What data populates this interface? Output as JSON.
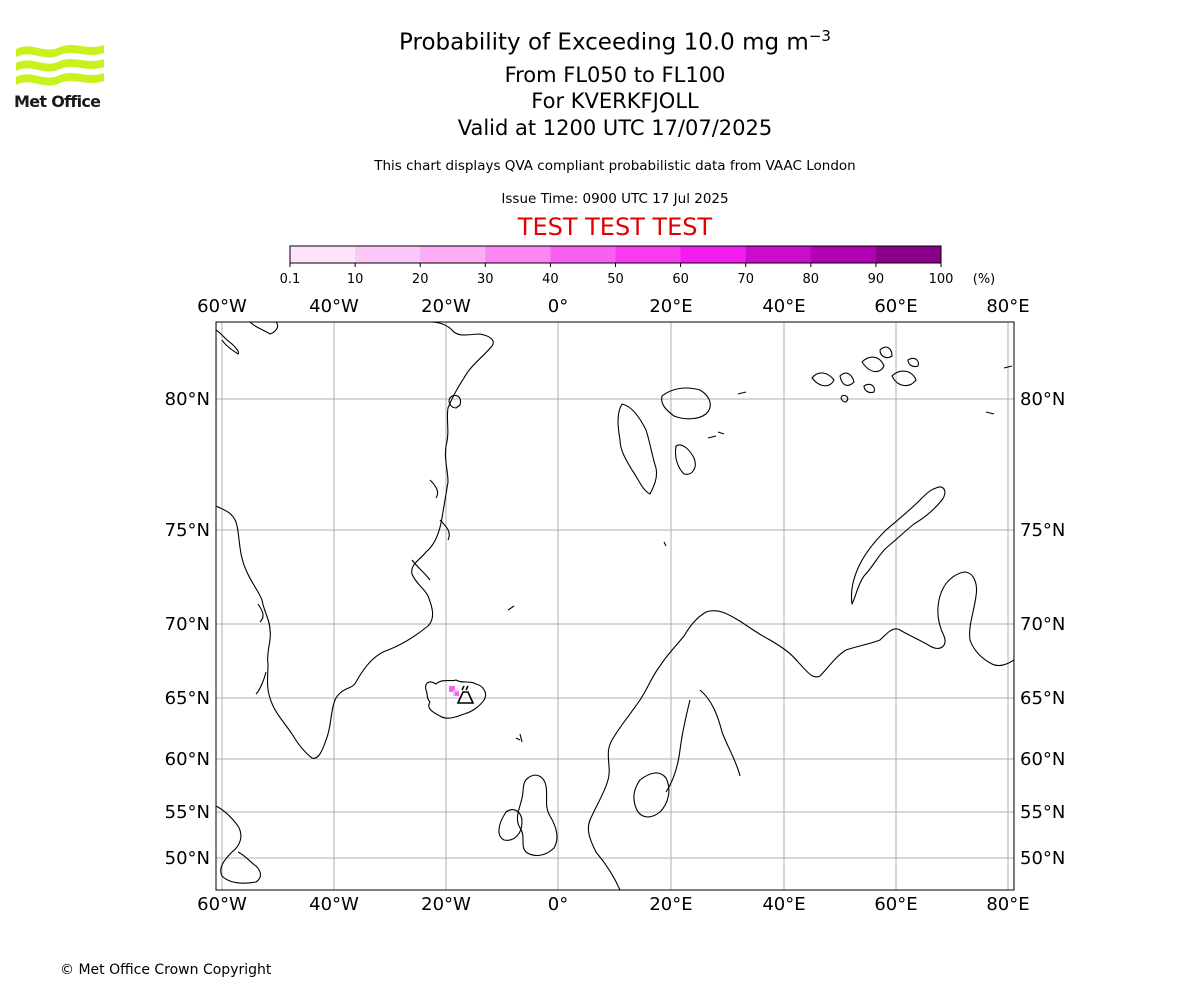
{
  "header": {
    "logo_text": "Met Office",
    "title_main": "Probability of Exceeding 10.0 mg m",
    "title_sup": "−3",
    "subtitle_levels": "From FL050 to FL100",
    "subtitle_volcano": "For KVERKFJOLL",
    "subtitle_valid": "Valid at 1200 UTC 17/07/2025",
    "description": "This chart displays QVA compliant probabilistic data from VAAC London",
    "issue_time": "Issue Time: 0900 UTC 17 Jul 2025",
    "test_banner": "TEST TEST TEST"
  },
  "colorbar": {
    "tick_labels": [
      "0.1",
      "10",
      "20",
      "30",
      "40",
      "50",
      "60",
      "70",
      "80",
      "90",
      "100"
    ],
    "unit_label": "(%)",
    "colors": [
      "#fde3fb",
      "#fcc8f8",
      "#fbadf5",
      "#fa86f3",
      "#f95ff1",
      "#f83bf0",
      "#f11cee",
      "#c90dca",
      "#b102b1",
      "#8b0089",
      "#63005f"
    ]
  },
  "map": {
    "longitude_labels": [
      "60°W",
      "40°W",
      "20°W",
      "0°",
      "20°E",
      "40°E",
      "60°E",
      "80°E"
    ],
    "latitude_labels": [
      "80°N",
      "75°N",
      "70°N",
      "65°N",
      "60°N",
      "55°N",
      "50°N"
    ],
    "volcano_name": "KVERKFJOLL",
    "ash_probability_colors": [
      "#f95ff1",
      "#fbadf5"
    ]
  },
  "footer": {
    "copyright": "© Met Office Crown Copyright"
  }
}
